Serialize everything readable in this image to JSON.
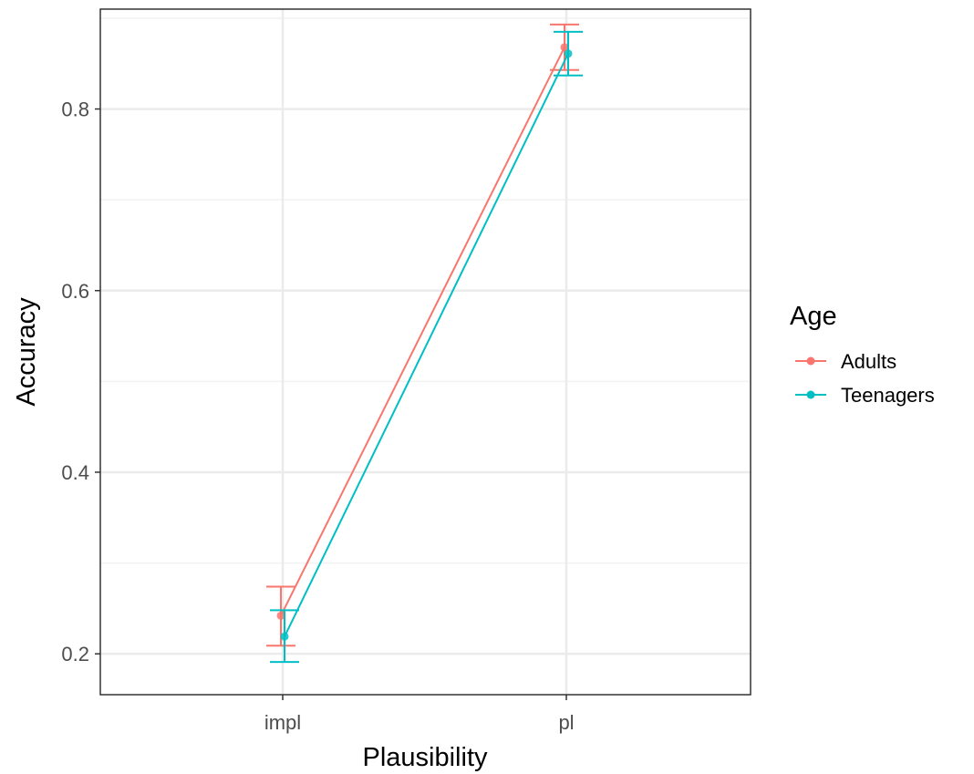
{
  "chart_data": {
    "type": "line",
    "xlabel": "Plausibility",
    "ylabel": "Accuracy",
    "categories": [
      "impl",
      "pl"
    ],
    "ylim": [
      0.155,
      0.91
    ],
    "yticks": [
      0.2,
      0.4,
      0.6,
      0.8
    ],
    "ytick_labels": [
      "0.2",
      "0.4",
      "0.6",
      "0.8"
    ],
    "grid": true,
    "legend": {
      "title": "Age",
      "placement": "right"
    },
    "series": [
      {
        "name": "Adults",
        "color": "#F8766D",
        "values": [
          0.242,
          0.868
        ],
        "error_low": [
          0.209,
          0.843
        ],
        "error_high": [
          0.274,
          0.893
        ]
      },
      {
        "name": "Teenagers",
        "color": "#00BFC4",
        "values": [
          0.219,
          0.861
        ],
        "error_low": [
          0.191,
          0.837
        ],
        "error_high": [
          0.248,
          0.885
        ]
      }
    ]
  }
}
